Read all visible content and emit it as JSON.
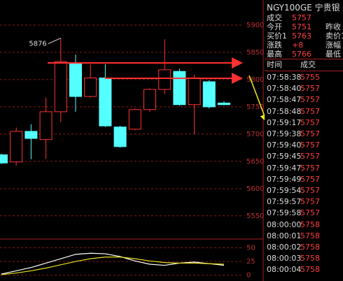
{
  "chart_data": [
    {
      "type": "candlestick",
      "annotation": "5876",
      "open": [
        5662,
        5649,
        5705,
        5690,
        5741,
        5831,
        5769,
        5803,
        5713,
        5709,
        5745,
        5782,
        5815,
        5754,
        5796,
        5757
      ],
      "high": [
        5664,
        5712,
        5718,
        5767,
        5876,
        5846,
        5828,
        5828,
        5715,
        5747,
        5784,
        5874,
        5820,
        5809,
        5799,
        5760
      ],
      "low": [
        5645,
        5642,
        5654,
        5654,
        5722,
        5741,
        5767,
        5713,
        5675,
        5707,
        5741,
        5773,
        5752,
        5700,
        5747,
        5753
      ],
      "close": [
        5647,
        5705,
        5692,
        5741,
        5833,
        5769,
        5803,
        5715,
        5677,
        5745,
        5782,
        5818,
        5754,
        5803,
        5750,
        5754
      ],
      "up_color": "#ff3232",
      "down_color": "#54ffff",
      "ylim": [
        5510,
        5946
      ],
      "yticks": [
        5550,
        5600,
        5650,
        5700,
        5750,
        5800,
        5850,
        5900
      ],
      "grid": true
    },
    {
      "type": "line",
      "series": [
        {
          "color": "#ffffff",
          "values": [
            2,
            8,
            14,
            22,
            30,
            38,
            40,
            39,
            34,
            26,
            20,
            18,
            22,
            24,
            21,
            18
          ]
        },
        {
          "color": "#e8e020",
          "values": [
            1,
            4,
            8,
            13,
            19,
            25,
            30,
            33,
            33,
            30,
            26,
            23,
            22,
            22,
            21,
            20
          ]
        }
      ],
      "ylim": [
        -8,
        62
      ],
      "yticks": [
        0,
        25,
        50
      ],
      "grid": true
    }
  ],
  "quote": {
    "title": "NGY100GE 宁贵银",
    "rows": [
      [
        "成交",
        "5757",
        ""
      ],
      [
        "今开",
        "5751",
        "昨收"
      ],
      [
        "买价1",
        "5763",
        "卖价1"
      ],
      [
        "涨跌",
        "+8",
        "涨幅"
      ],
      [
        "最高",
        "5766",
        "最低"
      ]
    ]
  },
  "trades": {
    "header": [
      "时间",
      "成交"
    ],
    "rows": [
      [
        "07:58:38",
        "5755"
      ],
      [
        "07:58:40",
        "5757"
      ],
      [
        "07:58:47",
        "5757"
      ],
      [
        "07:58:48",
        "5757"
      ],
      [
        "07:59:17",
        "5757"
      ],
      [
        "07:59:38",
        "5757"
      ],
      [
        "07:59:40",
        "5757"
      ],
      [
        "07:59:45",
        "5757"
      ],
      [
        "07:59:47",
        "5757"
      ],
      [
        "07:59:49",
        "5757"
      ],
      [
        "07:59:54",
        "5757"
      ],
      [
        "07:59:57",
        "5757"
      ],
      [
        "07:59:58",
        "5757"
      ],
      [
        "08:00:00",
        "5758"
      ],
      [
        "08:00:01",
        "5758"
      ],
      [
        "08:00:02",
        "5758"
      ],
      [
        "08:00:03",
        "5758"
      ],
      [
        "08:00:04",
        "5758"
      ]
    ]
  }
}
